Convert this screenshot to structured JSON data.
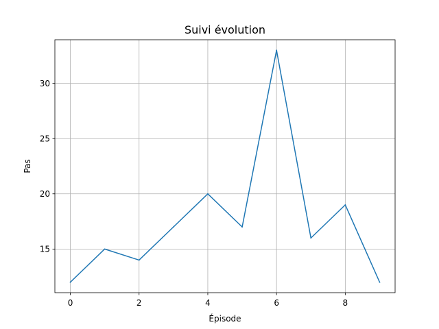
{
  "chart_data": {
    "type": "line",
    "title": "Suivi évolution",
    "xlabel": "Épisode",
    "ylabel": "Pas",
    "x": [
      0,
      1,
      2,
      3,
      4,
      5,
      6,
      7,
      8,
      9
    ],
    "series": [
      {
        "values": [
          12,
          15,
          14,
          17,
          20,
          17,
          33,
          16,
          19,
          12
        ],
        "color": "#1f77b4"
      }
    ],
    "xlim": [
      -0.45,
      9.45
    ],
    "ylim": [
      11.05,
      33.95
    ],
    "xticks": [
      0,
      2,
      4,
      6,
      8
    ],
    "yticks": [
      15,
      20,
      25,
      30
    ],
    "grid": true
  }
}
